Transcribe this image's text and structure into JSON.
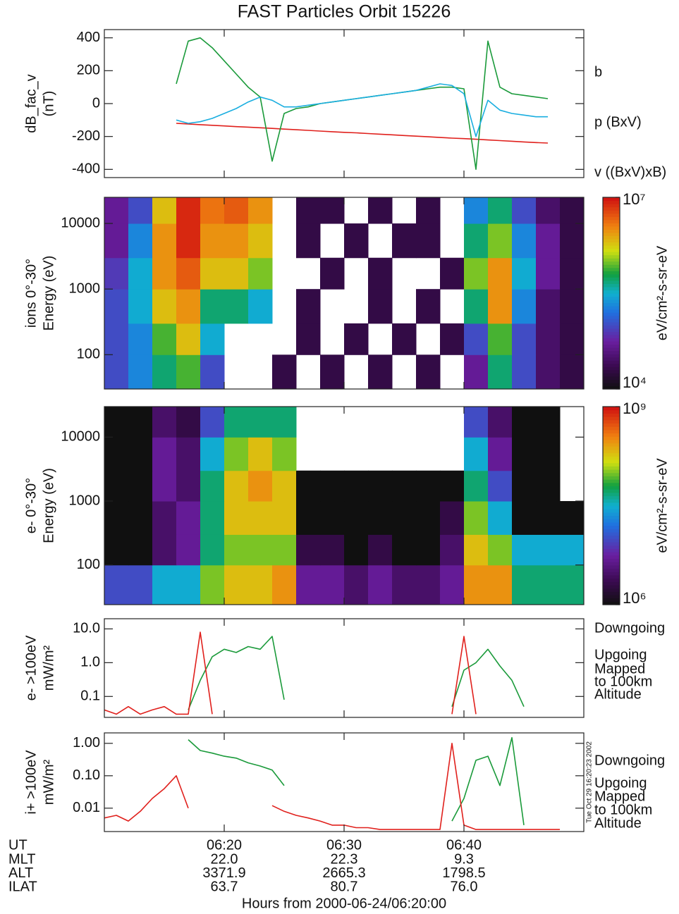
{
  "title": "FAST Particles Orbit 15226",
  "ut_label": "UT",
  "ephemeris": [
    {
      "label": "MLT",
      "values": [
        "22.0",
        "22.3",
        "9.3"
      ]
    },
    {
      "label": "ALT",
      "values": [
        "3371.9",
        "2665.3",
        "1798.5"
      ]
    },
    {
      "label": "ILAT",
      "values": [
        "63.7",
        "80.7",
        "76.0"
      ]
    }
  ],
  "x_label": "Hours from 2000-06-24/06:20:00",
  "timestamp": "Tue Oct 29 16:20:23 2002",
  "chart_data": [
    {
      "type": "line",
      "ylabel": [
        "dB_fac_v",
        "(nT)"
      ],
      "log": false,
      "xlim": [
        "06:10",
        "06:50"
      ],
      "xticks": [
        "06:20",
        "06:30",
        "06:40"
      ],
      "ylim": [
        -450,
        450
      ],
      "yticks": [
        -400,
        -200,
        0,
        200,
        400
      ],
      "x": [
        "06:16",
        "06:17",
        "06:18",
        "06:19",
        "06:20",
        "06:21",
        "06:22",
        "06:23",
        "06:24",
        "06:25",
        "06:26",
        "06:27",
        "06:28",
        "06:29",
        "06:30",
        "06:31",
        "06:32",
        "06:33",
        "06:34",
        "06:35",
        "06:36",
        "06:37",
        "06:38",
        "06:39",
        "06:40",
        "06:41",
        "06:42",
        "06:43",
        "06:44",
        "06:45",
        "06:46",
        "06:47"
      ],
      "series": [
        {
          "name": "b",
          "color": "#e0201c",
          "values": [
            -120,
            -124,
            -128,
            -132,
            -136,
            -140,
            -143,
            -147,
            -151,
            -155,
            -159,
            -163,
            -167,
            -171,
            -175,
            -178,
            -182,
            -186,
            -190,
            -194,
            -198,
            -202,
            -206,
            -210,
            -213,
            -217,
            -221,
            -225,
            -229,
            -233,
            -237,
            -240
          ]
        },
        {
          "name": "p (BxV)",
          "color": "#1a9a3a",
          "values": [
            120,
            380,
            400,
            340,
            260,
            180,
            100,
            40,
            -350,
            -60,
            -30,
            -20,
            0,
            10,
            20,
            30,
            40,
            50,
            60,
            70,
            80,
            90,
            100,
            100,
            90,
            -400,
            380,
            100,
            60,
            50,
            40,
            30
          ]
        },
        {
          "name": "v ((BxV)xB)",
          "color": "#1aaee0",
          "values": [
            -100,
            -120,
            -110,
            -90,
            -60,
            -30,
            10,
            40,
            20,
            -20,
            -20,
            -10,
            0,
            10,
            20,
            30,
            40,
            50,
            60,
            70,
            80,
            100,
            120,
            110,
            60,
            -200,
            20,
            -40,
            -60,
            -70,
            -80,
            -80
          ]
        }
      ]
    },
    {
      "type": "spectrogram",
      "ylabel": [
        "ions 0°-30°",
        "Energy (eV)"
      ],
      "log": true,
      "xlim": [
        "06:10",
        "06:50"
      ],
      "xticks": [
        "06:20",
        "06:30",
        "06:40"
      ],
      "ylim": [
        30,
        25000
      ],
      "yticks": [
        100,
        1000,
        10000
      ],
      "x_edges": [
        "06:10",
        "06:12",
        "06:14",
        "06:16",
        "06:18",
        "06:20",
        "06:22",
        "06:24",
        "06:26",
        "06:28",
        "06:30",
        "06:32",
        "06:34",
        "06:36",
        "06:38",
        "06:40",
        "06:42",
        "06:44",
        "06:46",
        "06:48",
        "06:50"
      ],
      "y_edges": [
        30,
        100,
        300,
        1000,
        3000,
        10000,
        25000
      ],
      "values": [
        [
          100000.0,
          200000.0,
          500000.0,
          800000.0,
          100000.0,
          null,
          null,
          20000.0,
          null,
          20000.0,
          null,
          20000.0,
          null,
          20000.0,
          null,
          50000.0,
          500000.0,
          100000.0,
          30000.0,
          20000.0
        ],
        [
          100000.0,
          200000.0,
          800000.0,
          2000000.0,
          300000.0,
          null,
          null,
          null,
          20000.0,
          null,
          20000.0,
          null,
          20000.0,
          null,
          20000.0,
          100000.0,
          800000.0,
          100000.0,
          30000.0,
          20000.0
        ],
        [
          100000.0,
          300000.0,
          2000000.0,
          3000000.0,
          500000.0,
          500000.0,
          300000.0,
          null,
          20000.0,
          null,
          null,
          20000.0,
          null,
          20000.0,
          null,
          500000.0,
          3000000.0,
          200000.0,
          30000.0,
          20000.0
        ],
        [
          80000.0,
          300000.0,
          3000000.0,
          5000000.0,
          2000000.0,
          2000000.0,
          1000000.0,
          null,
          null,
          20000.0,
          null,
          20000.0,
          null,
          null,
          20000.0,
          1000000.0,
          3000000.0,
          300000.0,
          50000.0,
          20000.0
        ],
        [
          50000.0,
          200000.0,
          3000000.0,
          8000000.0,
          3000000.0,
          3000000.0,
          2000000.0,
          null,
          20000.0,
          null,
          20000.0,
          null,
          20000.0,
          20000.0,
          null,
          500000.0,
          1000000.0,
          200000.0,
          50000.0,
          20000.0
        ],
        [
          50000.0,
          100000.0,
          2000000.0,
          8000000.0,
          4000000.0,
          5000000.0,
          3000000.0,
          null,
          20000.0,
          20000.0,
          null,
          20000.0,
          null,
          20000.0,
          null,
          200000.0,
          500000.0,
          100000.0,
          30000.0,
          20000.0
        ]
      ],
      "zlim": [
        10000,
        10000000
      ],
      "zticks": [
        {
          "value": 10000,
          "label": "10⁴"
        },
        {
          "value": 10000000,
          "label": "10⁷"
        }
      ],
      "colorbar_label": "eV/cm²-s-sr-eV"
    },
    {
      "type": "spectrogram",
      "ylabel": [
        "e- 0°-30°",
        "Energy (eV)"
      ],
      "log": true,
      "xlim": [
        "06:10",
        "06:50"
      ],
      "xticks": [
        "06:20",
        "06:30",
        "06:40"
      ],
      "ylim": [
        24,
        30000
      ],
      "yticks": [
        100,
        1000,
        10000
      ],
      "x_edges": [
        "06:10",
        "06:12",
        "06:14",
        "06:16",
        "06:18",
        "06:20",
        "06:22",
        "06:24",
        "06:26",
        "06:28",
        "06:30",
        "06:32",
        "06:34",
        "06:36",
        "06:38",
        "06:40",
        "06:42",
        "06:44",
        "06:46",
        "06:48",
        "06:50"
      ],
      "y_edges": [
        24,
        100,
        300,
        1000,
        3000,
        10000,
        30000
      ],
      "values": [
        [
          10000000.0,
          10000000.0,
          30000000.0,
          30000000.0,
          100000000.0,
          200000000.0,
          200000000.0,
          300000000.0,
          5000000.0,
          5000000.0,
          3000000.0,
          5000000.0,
          3000000.0,
          3000000.0,
          5000000.0,
          300000000.0,
          300000000.0,
          50000000.0,
          50000000.0,
          50000000.0
        ],
        [
          1000000.0,
          1000000.0,
          3000000.0,
          5000000.0,
          50000000.0,
          100000000.0,
          100000000.0,
          100000000.0,
          2000000.0,
          2000000.0,
          1000000.0,
          2000000.0,
          1000000.0,
          1000000.0,
          3000000.0,
          200000000.0,
          100000000.0,
          30000000.0,
          30000000.0,
          30000000.0
        ],
        [
          1000000.0,
          1000000.0,
          3000000.0,
          5000000.0,
          50000000.0,
          200000000.0,
          200000000.0,
          200000000.0,
          1000000.0,
          1000000.0,
          1000000.0,
          1000000.0,
          1000000.0,
          1000000.0,
          2000000.0,
          100000000.0,
          30000000.0,
          1000000.0,
          1000000.0,
          1000000.0
        ],
        [
          1000000.0,
          1000000.0,
          5000000.0,
          3000000.0,
          50000000.0,
          200000000.0,
          300000000.0,
          200000000.0,
          1000000.0,
          1000000.0,
          1000000.0,
          1000000.0,
          1000000.0,
          1000000.0,
          1000000.0,
          50000000.0,
          10000000.0,
          1000000.0,
          1000000.0,
          null
        ],
        [
          1000000.0,
          1000000.0,
          5000000.0,
          3000000.0,
          30000000.0,
          100000000.0,
          200000000.0,
          100000000.0,
          null,
          null,
          null,
          null,
          null,
          null,
          null,
          30000000.0,
          5000000.0,
          1000000.0,
          1000000.0,
          null
        ],
        [
          1000000.0,
          1000000.0,
          3000000.0,
          2000000.0,
          10000000.0,
          50000000.0,
          50000000.0,
          50000000.0,
          null,
          null,
          null,
          null,
          null,
          null,
          null,
          10000000.0,
          3000000.0,
          1000000.0,
          1000000.0,
          null
        ]
      ],
      "zlim": [
        1000000,
        1000000000
      ],
      "zticks": [
        {
          "value": 1000000,
          "label": "10⁶"
        },
        {
          "value": 1000000000,
          "label": "10⁹"
        }
      ],
      "colorbar_label": "eV/cm²-s-sr-eV"
    },
    {
      "type": "line",
      "ylabel": [
        "e- >100eV",
        "mW/m²"
      ],
      "log": true,
      "xlim": [
        "06:10",
        "06:50"
      ],
      "xticks": [
        "06:20",
        "06:30",
        "06:40"
      ],
      "ylim": [
        0.024,
        20
      ],
      "yticks": [
        0.1,
        {
          "value": 1,
          "label": "1.0"
        },
        {
          "value": 10,
          "label": "10.0"
        }
      ],
      "x": [
        "06:10",
        "06:11",
        "06:12",
        "06:13",
        "06:14",
        "06:15",
        "06:16",
        "06:17",
        "06:18",
        "06:19",
        "06:20",
        "06:21",
        "06:22",
        "06:23",
        "06:24",
        "06:25",
        "06:26",
        "06:27",
        "06:28",
        "06:29",
        "06:30",
        "06:31",
        "06:32",
        "06:33",
        "06:34",
        "06:35",
        "06:36",
        "06:37",
        "06:38",
        "06:39",
        "06:40",
        "06:41",
        "06:42",
        "06:43",
        "06:44",
        "06:45",
        "06:46",
        "06:47",
        "06:48"
      ],
      "series": [
        {
          "name": "Downgoing",
          "color": "#1a9a3a",
          "values": [
            null,
            null,
            null,
            null,
            null,
            null,
            null,
            0.04,
            0.3,
            1.5,
            2.5,
            2,
            3,
            2.5,
            6,
            0.08,
            null,
            null,
            null,
            null,
            null,
            null,
            null,
            null,
            null,
            null,
            null,
            null,
            null,
            0.05,
            0.6,
            1,
            2.5,
            0.8,
            0.3,
            0.05,
            null,
            null,
            null
          ]
        },
        {
          "name": "Upgoing",
          "color": "#e0201c",
          "values": [
            0.04,
            0.03,
            0.05,
            0.03,
            0.04,
            0.05,
            0.03,
            0.03,
            8,
            0.03,
            null,
            null,
            null,
            null,
            null,
            null,
            null,
            null,
            null,
            null,
            null,
            null,
            null,
            null,
            null,
            null,
            null,
            null,
            null,
            0.03,
            6,
            0.03,
            null,
            null,
            null,
            null,
            null,
            null,
            null
          ]
        }
      ],
      "annotation": [
        "Mapped",
        "to 100km",
        "Altitude"
      ]
    },
    {
      "type": "line",
      "ylabel": [
        "i+ >100eV",
        "mW/m²"
      ],
      "log": true,
      "xlim": [
        "06:10",
        "06:50"
      ],
      "xticks": [
        "06:20",
        "06:30",
        "06:40"
      ],
      "ylim": [
        0.0019,
        2.1
      ],
      "yticks": [
        0.01,
        {
          "value": 0.1,
          "label": "0.10"
        },
        {
          "value": 1,
          "label": "1.00"
        }
      ],
      "x": [
        "06:10",
        "06:11",
        "06:12",
        "06:13",
        "06:14",
        "06:15",
        "06:16",
        "06:17",
        "06:18",
        "06:19",
        "06:20",
        "06:21",
        "06:22",
        "06:23",
        "06:24",
        "06:25",
        "06:26",
        "06:27",
        "06:28",
        "06:29",
        "06:30",
        "06:31",
        "06:32",
        "06:33",
        "06:34",
        "06:35",
        "06:36",
        "06:37",
        "06:38",
        "06:39",
        "06:40",
        "06:41",
        "06:42",
        "06:43",
        "06:44",
        "06:45",
        "06:46",
        "06:47",
        "06:48"
      ],
      "series": [
        {
          "name": "Downgoing",
          "color": "#1a9a3a",
          "values": [
            null,
            null,
            null,
            null,
            null,
            null,
            null,
            1.3,
            0.6,
            0.5,
            0.4,
            0.35,
            0.25,
            0.2,
            0.15,
            0.05,
            null,
            null,
            null,
            null,
            null,
            null,
            null,
            null,
            null,
            null,
            null,
            null,
            null,
            0.004,
            0.02,
            0.3,
            0.4,
            0.05,
            1.5,
            0.003,
            null,
            null,
            null
          ]
        },
        {
          "name": "Upgoing",
          "color": "#e0201c",
          "values": [
            0.005,
            0.006,
            0.004,
            0.008,
            0.02,
            0.04,
            0.1,
            0.01,
            null,
            null,
            null,
            null,
            null,
            null,
            0.012,
            0.008,
            0.006,
            0.005,
            0.004,
            0.003,
            0.003,
            0.0025,
            0.0025,
            0.0022,
            0.0022,
            0.0022,
            0.0022,
            0.0022,
            0.0022,
            1,
            0.003,
            0.0022,
            0.0022,
            0.0022,
            0.0022,
            0.0022,
            0.0022,
            0.0022,
            0.0022
          ]
        }
      ],
      "annotation": [
        "Mapped",
        "to 100km",
        "Altitude"
      ]
    }
  ]
}
